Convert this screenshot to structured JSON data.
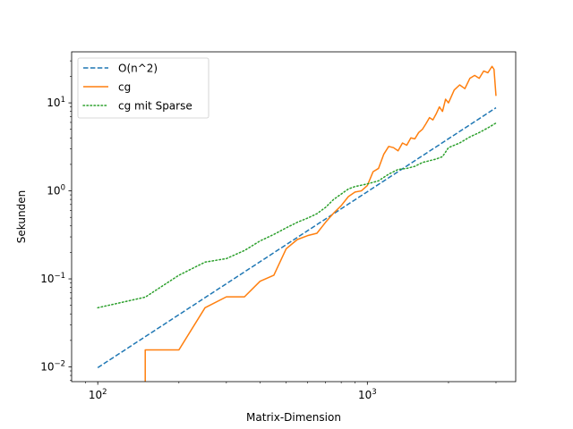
{
  "chart_data": {
    "type": "line",
    "xlabel": "Matrix-Dimension",
    "ylabel": "Sekunden",
    "xscale": "log",
    "yscale": "log",
    "xlim": [
      80,
      3550
    ],
    "ylim": [
      0.0068,
      38
    ],
    "grid": false,
    "legend_position": "top-left",
    "x_ticks": [
      {
        "value": 100,
        "base": "10",
        "exp": "2"
      },
      {
        "value": 1000,
        "base": "10",
        "exp": "3"
      }
    ],
    "y_ticks": [
      {
        "value": 0.01,
        "base": "10",
        "exp": "−2"
      },
      {
        "value": 0.1,
        "base": "10",
        "exp": "−1"
      },
      {
        "value": 1,
        "base": "10",
        "exp": "0"
      },
      {
        "value": 10,
        "base": "10",
        "exp": "1"
      }
    ],
    "series": [
      {
        "name": "O(n^2)",
        "color": "#1f77b4",
        "style": "dashed",
        "x": [
          100,
          3000
        ],
        "y": [
          0.0098,
          8.8
        ]
      },
      {
        "name": "cg",
        "color": "#ff7f0e",
        "style": "solid",
        "x": [
          150,
          150,
          200,
          250,
          300,
          350,
          400,
          450,
          500,
          550,
          600,
          650,
          700,
          750,
          800,
          850,
          900,
          950,
          1000,
          1050,
          1100,
          1150,
          1200,
          1250,
          1300,
          1350,
          1400,
          1450,
          1500,
          1550,
          1600,
          1650,
          1700,
          1750,
          1800,
          1850,
          1900,
          1950,
          2000,
          2100,
          2200,
          2300,
          2400,
          2500,
          2600,
          2700,
          2800,
          2900,
          2950,
          3000
        ],
        "y": [
          0.0068,
          0.0156,
          0.0156,
          0.047,
          0.0625,
          0.0625,
          0.094,
          0.11,
          0.22,
          0.28,
          0.31,
          0.33,
          0.44,
          0.56,
          0.68,
          0.86,
          0.97,
          1.0,
          1.15,
          1.65,
          1.8,
          2.6,
          3.2,
          3.1,
          2.85,
          3.5,
          3.3,
          4.0,
          3.9,
          4.6,
          5.0,
          5.8,
          6.8,
          6.4,
          7.5,
          9.0,
          8.0,
          11.0,
          10.0,
          14.0,
          16.0,
          14.5,
          19.0,
          20.5,
          19.0,
          23.0,
          22.0,
          26.0,
          24.0,
          12.0
        ]
      },
      {
        "name": "cg mit Sparse",
        "color": "#2ca02c",
        "style": "dotted",
        "x": [
          100,
          150,
          200,
          250,
          300,
          350,
          400,
          450,
          500,
          550,
          600,
          650,
          700,
          750,
          800,
          850,
          900,
          1000,
          1100,
          1200,
          1300,
          1400,
          1500,
          1600,
          1700,
          1800,
          1900,
          2000,
          2200,
          2400,
          2600,
          2800,
          3000
        ],
        "y": [
          0.047,
          0.062,
          0.11,
          0.155,
          0.17,
          0.21,
          0.27,
          0.32,
          0.38,
          0.44,
          0.49,
          0.55,
          0.65,
          0.8,
          0.92,
          1.05,
          1.12,
          1.2,
          1.3,
          1.55,
          1.75,
          1.8,
          1.9,
          2.1,
          2.2,
          2.3,
          2.45,
          3.1,
          3.5,
          4.1,
          4.6,
          5.2,
          5.9
        ]
      }
    ]
  }
}
